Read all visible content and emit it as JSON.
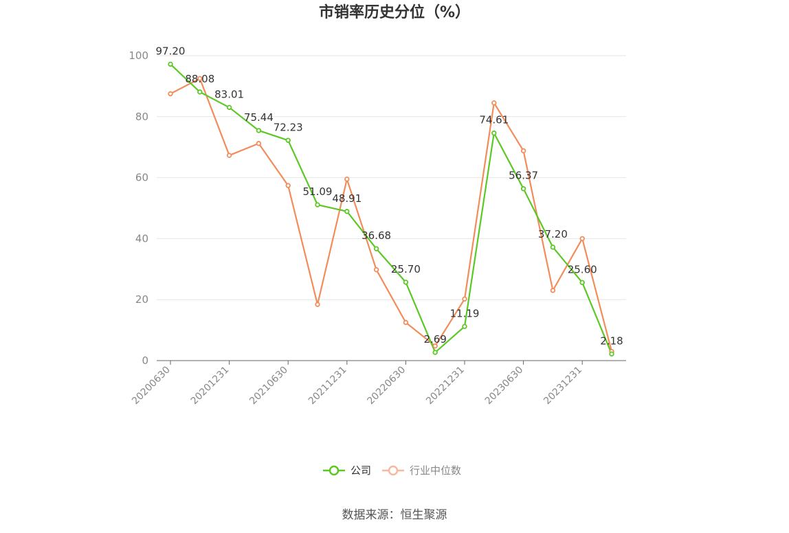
{
  "source": "数据来源：恒生聚源",
  "colors": {
    "company": "#5bc825",
    "industry": "#f28c5a",
    "industry_legend": "#f6b8a0",
    "grid": "#e6e6e6",
    "axis": "#666666"
  },
  "chart_data": {
    "type": "line",
    "title": "市销率历史分位（%）",
    "ylim": [
      0,
      100
    ],
    "yticks": [
      0,
      20,
      40,
      60,
      80,
      100
    ],
    "x": [
      "20200630",
      "20200930",
      "20201231",
      "20210331",
      "20210630",
      "20210930",
      "20211231",
      "20220331",
      "20220630",
      "20220930",
      "20221231",
      "20230331",
      "20230630",
      "20230930",
      "20231231",
      "20240331"
    ],
    "xtick_labels": [
      "20200630",
      "20201231",
      "20210630",
      "20211231",
      "20220630",
      "20221231",
      "20230630",
      "20231231"
    ],
    "grid": true,
    "legend_position": "bottom-center",
    "series": [
      {
        "name": "公司",
        "values": [
          97.2,
          88.08,
          83.01,
          75.44,
          72.23,
          51.09,
          48.91,
          36.68,
          25.7,
          2.69,
          11.19,
          74.61,
          56.37,
          37.2,
          25.6,
          2.18
        ],
        "labels": [
          "97.20",
          "88.08",
          "83.01",
          "75.44",
          "72.23",
          "51.09",
          "48.91",
          "36.68",
          "25.70",
          "2.69",
          "11.19",
          "74.61",
          "56.37",
          "37.20",
          "25.60",
          "2.18"
        ]
      },
      {
        "name": "行业中位数",
        "values": [
          87.5,
          92.5,
          67.3,
          71.2,
          57.4,
          18.4,
          59.5,
          29.8,
          12.5,
          4.8,
          20.2,
          84.5,
          68.8,
          23.0,
          40.0,
          3.0
        ]
      }
    ]
  }
}
